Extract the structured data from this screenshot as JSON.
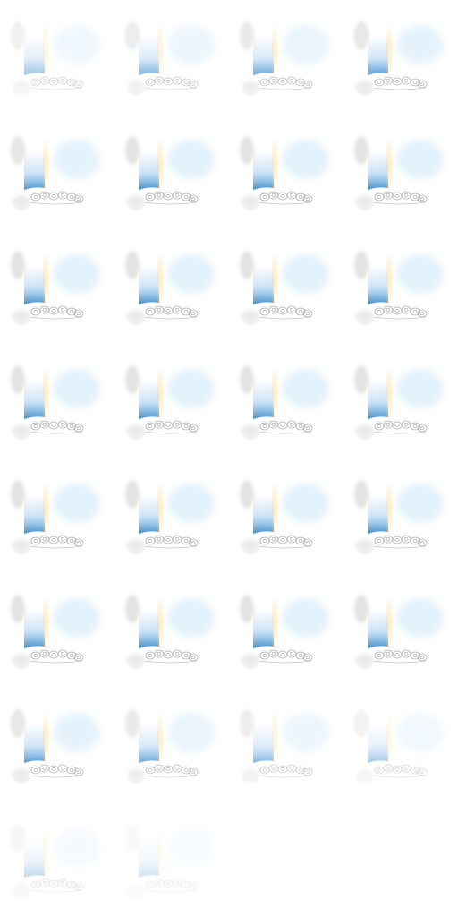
{
  "sprite_sheet": {
    "columns": 4,
    "rows": 8,
    "frame_count": 30,
    "colors": {
      "background": "#ffffff",
      "blue_panel": "#3f8fd2",
      "blue_panel_light": "#b9d9f3",
      "glow_beam": "#ffd98a",
      "glow_beam_core": "#fff4d6",
      "mist": "#d8ecfb",
      "flowers": "#9a9a9a",
      "smoke": "#cfcfcf"
    },
    "frames": [
      {
        "opacity": 0.55
      },
      {
        "opacity": 0.7
      },
      {
        "opacity": 0.8
      },
      {
        "opacity": 0.9
      },
      {
        "opacity": 0.95
      },
      {
        "opacity": 1
      },
      {
        "opacity": 1
      },
      {
        "opacity": 1
      },
      {
        "opacity": 1
      },
      {
        "opacity": 1
      },
      {
        "opacity": 1
      },
      {
        "opacity": 1
      },
      {
        "opacity": 1
      },
      {
        "opacity": 1
      },
      {
        "opacity": 1
      },
      {
        "opacity": 1
      },
      {
        "opacity": 1
      },
      {
        "opacity": 1
      },
      {
        "opacity": 1
      },
      {
        "opacity": 1
      },
      {
        "opacity": 1
      },
      {
        "opacity": 1
      },
      {
        "opacity": 1
      },
      {
        "opacity": 1
      },
      {
        "opacity": 0.9
      },
      {
        "opacity": 0.8
      },
      {
        "opacity": 0.65
      },
      {
        "opacity": 0.5
      },
      {
        "opacity": 0.35
      },
      {
        "opacity": 0.25
      }
    ]
  }
}
